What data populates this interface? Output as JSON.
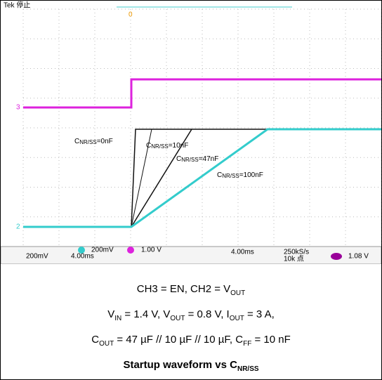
{
  "scope": {
    "status": "Tek 停止",
    "labels": [
      [
        "C",
        "NR/SS",
        "=0nF"
      ],
      [
        "C",
        "NR/SS",
        "=10nF"
      ],
      [
        "C",
        "NR/SS",
        "=47nF"
      ],
      [
        "C",
        "NR/SS",
        "=100nF"
      ]
    ],
    "footer": {
      "ch1": "200mV",
      "ch2": "200mV",
      "ch3": "1.00 V",
      "time": "4.00ms",
      "rate": "250kS/s",
      "points": "10k 点",
      "trigger": "1.08 V"
    }
  },
  "captions": [
    [
      "CH3 = EN, CH2 = V",
      "OUT",
      ""
    ],
    [
      "V",
      "IN",
      " = 1.4 V, V",
      "OUT",
      " = 0.8 V, I",
      "OUT",
      " = 3 A,"
    ],
    [
      "C",
      "OUT",
      " = 47 µF // 10 µF // 10 µF, C",
      "FF",
      " = 10 nF"
    ],
    [
      "Startup waveform vs C",
      "NR/SS",
      ""
    ]
  ]
}
